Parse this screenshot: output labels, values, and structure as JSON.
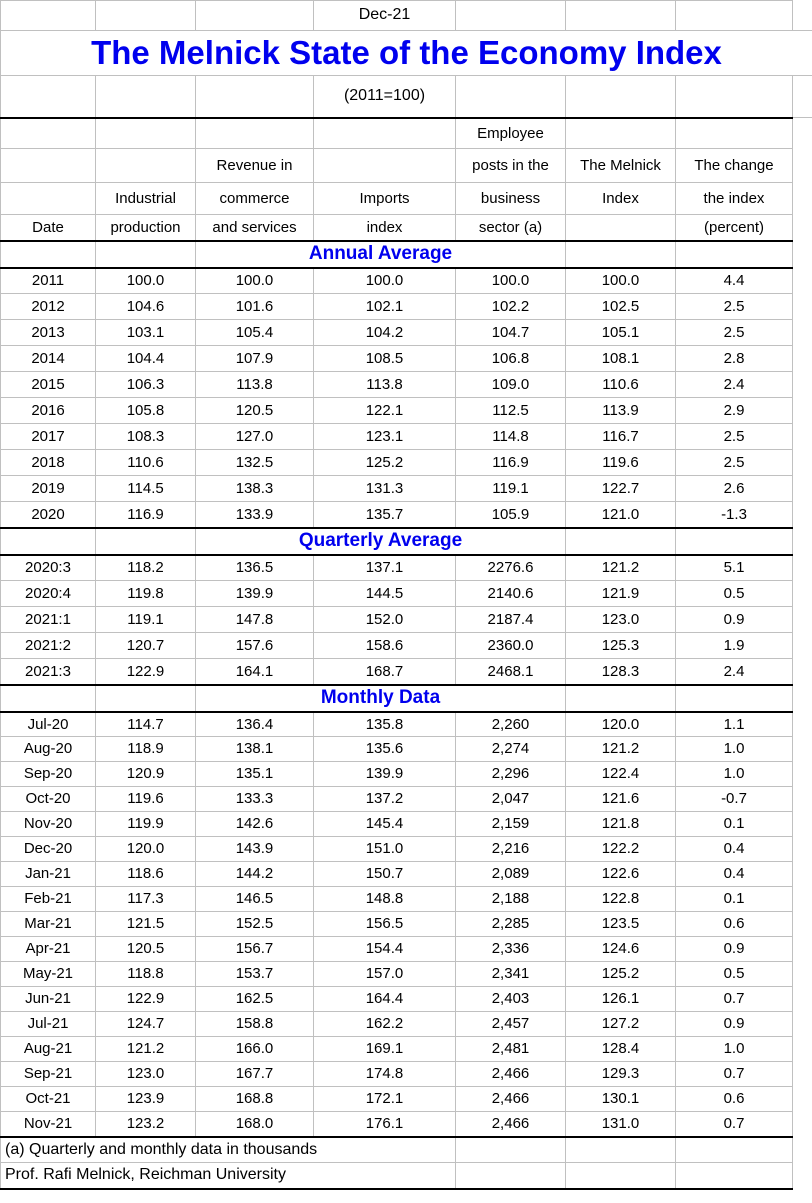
{
  "colors": {
    "accent_blue": "#0000EE",
    "gridline_gray": "#C0C0C0",
    "border_black": "#000000",
    "background": "#FFFFFF",
    "text": "#000000"
  },
  "chart_data": {
    "type": "table",
    "report_date": "Dec-21",
    "title": "The Melnick State of the Economy Index",
    "subtitle": "(2011=100)",
    "columns": [
      "Date",
      "Industrial production",
      "Revenue in commerce and services",
      "Imports index",
      "Employee posts in the business sector (a)",
      "The Melnick Index",
      "The change the index (percent)"
    ],
    "header_rows": [
      [
        "",
        "",
        "",
        "",
        "Employee",
        "",
        ""
      ],
      [
        "",
        "",
        "Revenue in",
        "",
        "posts in the",
        "The Melnick",
        "The change"
      ],
      [
        "",
        "Industrial",
        "commerce",
        "Imports",
        "business",
        "Index",
        "the index"
      ],
      [
        "Date",
        "production",
        "and services",
        "index",
        "sector (a)",
        "",
        "(percent)"
      ]
    ],
    "sections": [
      {
        "label": "Annual Average",
        "rows": [
          [
            "2011",
            "100.0",
            "100.0",
            "100.0",
            "100.0",
            "100.0",
            "4.4"
          ],
          [
            "2012",
            "104.6",
            "101.6",
            "102.1",
            "102.2",
            "102.5",
            "2.5"
          ],
          [
            "2013",
            "103.1",
            "105.4",
            "104.2",
            "104.7",
            "105.1",
            "2.5"
          ],
          [
            "2014",
            "104.4",
            "107.9",
            "108.5",
            "106.8",
            "108.1",
            "2.8"
          ],
          [
            "2015",
            "106.3",
            "113.8",
            "113.8",
            "109.0",
            "110.6",
            "2.4"
          ],
          [
            "2016",
            "105.8",
            "120.5",
            "122.1",
            "112.5",
            "113.9",
            "2.9"
          ],
          [
            "2017",
            "108.3",
            "127.0",
            "123.1",
            "114.8",
            "116.7",
            "2.5"
          ],
          [
            "2018",
            "110.6",
            "132.5",
            "125.2",
            "116.9",
            "119.6",
            "2.5"
          ],
          [
            "2019",
            "114.5",
            "138.3",
            "131.3",
            "119.1",
            "122.7",
            "2.6"
          ],
          [
            "2020",
            "116.9",
            "133.9",
            "135.7",
            "105.9",
            "121.0",
            "-1.3"
          ]
        ]
      },
      {
        "label": "Quarterly Average",
        "rows": [
          [
            "2020:3",
            "118.2",
            "136.5",
            "137.1",
            "2276.6",
            "121.2",
            "5.1"
          ],
          [
            "2020:4",
            "119.8",
            "139.9",
            "144.5",
            "2140.6",
            "121.9",
            "0.5"
          ],
          [
            "2021:1",
            "119.1",
            "147.8",
            "152.0",
            "2187.4",
            "123.0",
            "0.9"
          ],
          [
            "2021:2",
            "120.7",
            "157.6",
            "158.6",
            "2360.0",
            "125.3",
            "1.9"
          ],
          [
            "2021:3",
            "122.9",
            "164.1",
            "168.7",
            "2468.1",
            "128.3",
            "2.4"
          ]
        ]
      },
      {
        "label": "Monthly Data",
        "rows": [
          [
            "Jul-20",
            "114.7",
            "136.4",
            "135.8",
            "2,260",
            "120.0",
            "1.1"
          ],
          [
            "Aug-20",
            "118.9",
            "138.1",
            "135.6",
            "2,274",
            "121.2",
            "1.0"
          ],
          [
            "Sep-20",
            "120.9",
            "135.1",
            "139.9",
            "2,296",
            "122.4",
            "1.0"
          ],
          [
            "Oct-20",
            "119.6",
            "133.3",
            "137.2",
            "2,047",
            "121.6",
            "-0.7"
          ],
          [
            "Nov-20",
            "119.9",
            "142.6",
            "145.4",
            "2,159",
            "121.8",
            "0.1"
          ],
          [
            "Dec-20",
            "120.0",
            "143.9",
            "151.0",
            "2,216",
            "122.2",
            "0.4"
          ],
          [
            "Jan-21",
            "118.6",
            "144.2",
            "150.7",
            "2,089",
            "122.6",
            "0.4"
          ],
          [
            "Feb-21",
            "117.3",
            "146.5",
            "148.8",
            "2,188",
            "122.8",
            "0.1"
          ],
          [
            "Mar-21",
            "121.5",
            "152.5",
            "156.5",
            "2,285",
            "123.5",
            "0.6"
          ],
          [
            "Apr-21",
            "120.5",
            "156.7",
            "154.4",
            "2,336",
            "124.6",
            "0.9"
          ],
          [
            "May-21",
            "118.8",
            "153.7",
            "157.0",
            "2,341",
            "125.2",
            "0.5"
          ],
          [
            "Jun-21",
            "122.9",
            "162.5",
            "164.4",
            "2,403",
            "126.1",
            "0.7"
          ],
          [
            "Jul-21",
            "124.7",
            "158.8",
            "162.2",
            "2,457",
            "127.2",
            "0.9"
          ],
          [
            "Aug-21",
            "121.2",
            "166.0",
            "169.1",
            "2,481",
            "128.4",
            "1.0"
          ],
          [
            "Sep-21",
            "123.0",
            "167.7",
            "174.8",
            "2,466",
            "129.3",
            "0.7"
          ],
          [
            "Oct-21",
            "123.9",
            "168.8",
            "172.1",
            "2,466",
            "130.1",
            "0.6"
          ],
          [
            "Nov-21",
            "123.2",
            "168.0",
            "176.1",
            "2,466",
            "131.0",
            "0.7"
          ]
        ]
      }
    ],
    "footnotes": [
      "(a) Quarterly and monthly data in thousands",
      "Prof. Rafi Melnick, Reichman University"
    ]
  }
}
